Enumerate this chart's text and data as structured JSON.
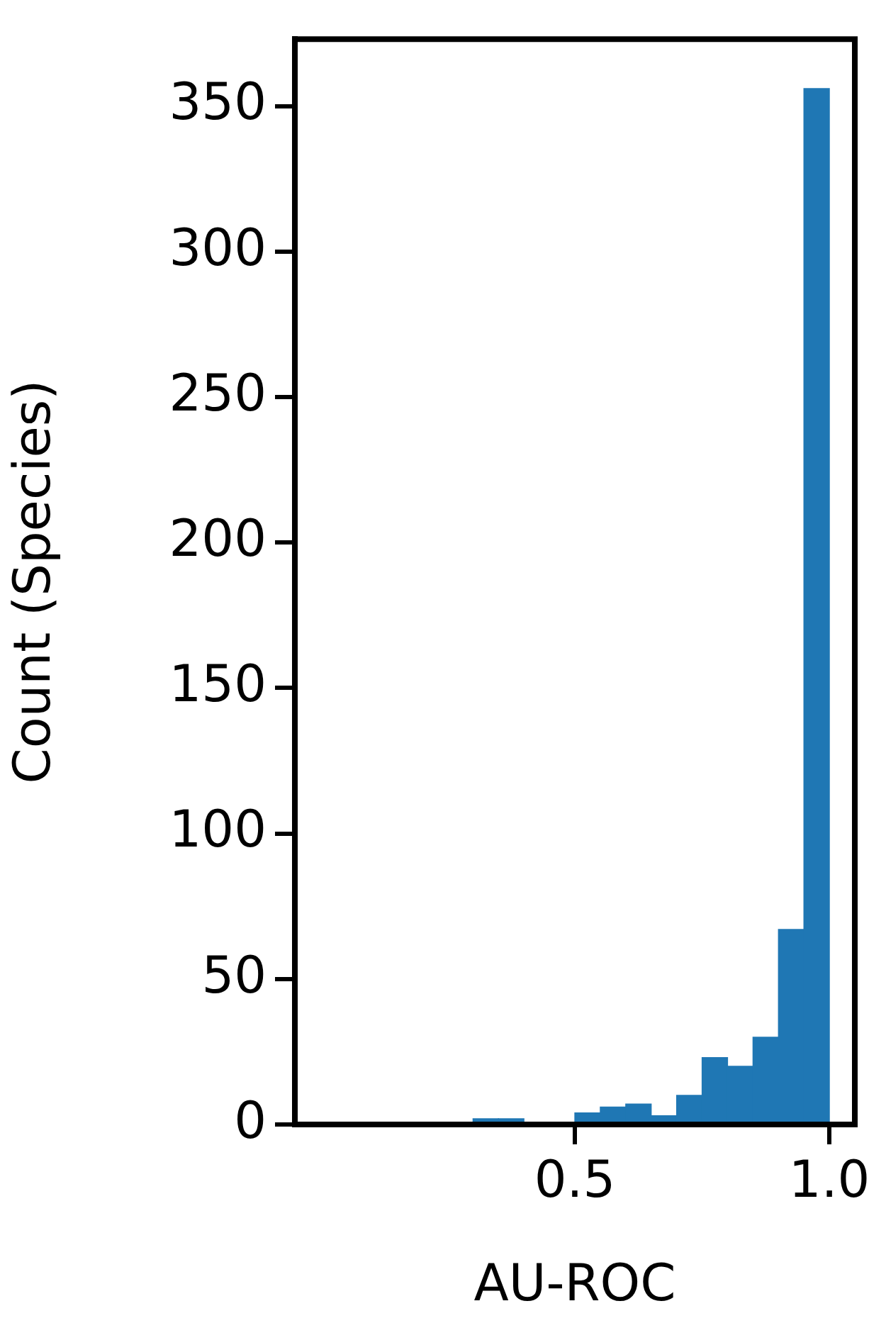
{
  "chart_data": {
    "type": "histogram",
    "xlabel": "AU-ROC",
    "ylabel": "Count (Species)",
    "bins": [
      0,
      0.05,
      0.1,
      0.15,
      0.2,
      0.25,
      0.3,
      0.35,
      0.4,
      0.45,
      0.5,
      0.55,
      0.6,
      0.65,
      0.7,
      0.75,
      0.8,
      0.85,
      0.9,
      0.95,
      1.0
    ],
    "values": [
      0,
      0,
      0,
      0,
      0,
      0,
      2,
      2,
      0,
      0,
      4,
      6,
      7,
      3,
      10,
      23,
      20,
      30,
      67,
      356
    ],
    "color": "#1f77b4",
    "xlim": [
      -0.05,
      1.05
    ],
    "xticks": [
      0.5,
      {
        "value": 1,
        "label": "1.0"
      }
    ],
    "ylim": [
      0,
      373
    ],
    "yticks": [
      0,
      50,
      100,
      150,
      200,
      250,
      300,
      350
    ],
    "grid": false,
    "legend": false
  }
}
